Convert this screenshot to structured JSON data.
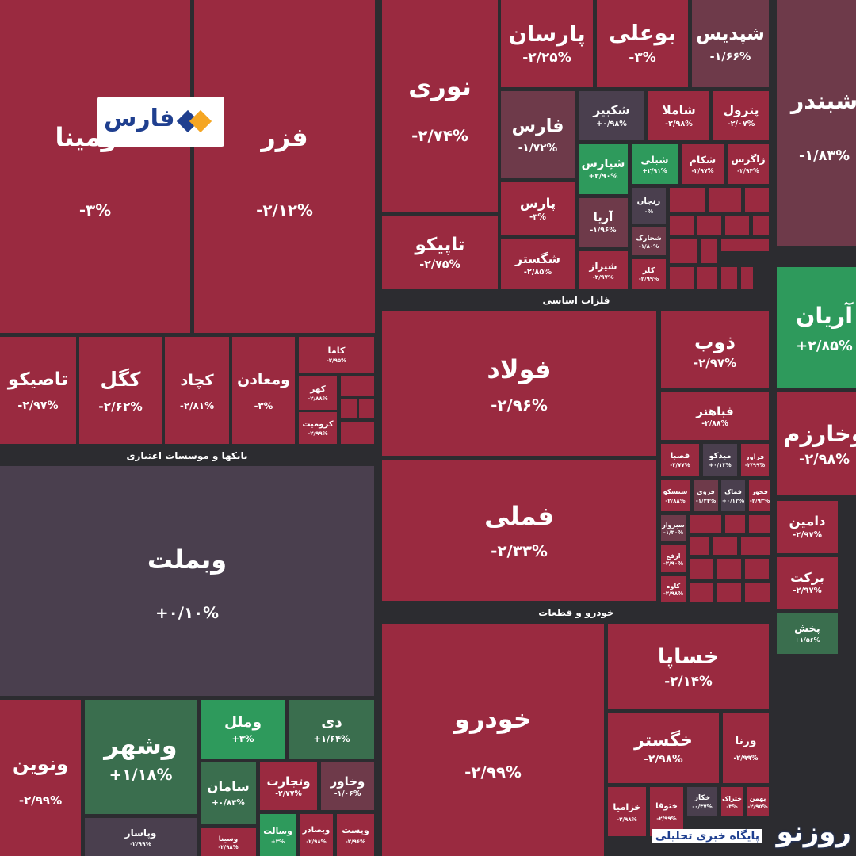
{
  "tiles": [
    {
      "name": "آلومینا",
      "change": "-۳%"
    },
    {
      "name": "فزر",
      "change": "-۲/۱۲%"
    },
    {
      "name": "تاصیکو",
      "change": "-۲/۹۷%"
    },
    {
      "name": "کگل",
      "change": "-۲/۶۲%"
    },
    {
      "name": "کچاد",
      "change": "-۲/۸۱%"
    },
    {
      "name": "ومعادن",
      "change": "-۳%"
    },
    {
      "name": "کاما",
      "change": "-۲/۹۵%"
    },
    {
      "name": "کهر",
      "change": "-۲/۸۸%"
    },
    {
      "name": "کرومیت",
      "change": "-۲/۹۹%"
    },
    {
      "name": "وبملت",
      "change": "+۰/۱۰%"
    },
    {
      "name": "ونوین",
      "change": "-۲/۹۹%"
    },
    {
      "name": "وشهر",
      "change": "+۱/۱۸%"
    },
    {
      "name": "وملل",
      "change": "+۳%"
    },
    {
      "name": "دی",
      "change": "+۱/۶۴%"
    },
    {
      "name": "سامان",
      "change": "+۰/۸۳%"
    },
    {
      "name": "وتجارت",
      "change": "-۲/۷۷%"
    },
    {
      "name": "وخاور",
      "change": "-۱/۰۶%"
    },
    {
      "name": "وپاسار",
      "change": "-۲/۹۹%"
    },
    {
      "name": "وسالت",
      "change": "+۳%"
    },
    {
      "name": "وبصادر",
      "change": "-۲/۹۸%"
    },
    {
      "name": "وپست",
      "change": "-۲/۹۶%"
    },
    {
      "name": "وسینا",
      "change": "-۲/۹۸%"
    },
    {
      "name": "نوری",
      "change": "-۲/۷۴%"
    },
    {
      "name": "تاپیکو",
      "change": "-۲/۷۵%"
    },
    {
      "name": "پارسان",
      "change": "-۲/۲۵%"
    },
    {
      "name": "فارس",
      "change": "-۱/۷۲%"
    },
    {
      "name": "پارس",
      "change": "-۳%"
    },
    {
      "name": "شگستر",
      "change": "-۲/۸۵%"
    },
    {
      "name": "بوعلی",
      "change": "-۳%"
    },
    {
      "name": "شپدیس",
      "change": "-۱/۶۶%"
    },
    {
      "name": "شکبیر",
      "change": "+۰/۹۸%"
    },
    {
      "name": "شاملا",
      "change": "-۲/۹۸%"
    },
    {
      "name": "پترول",
      "change": "-۲/۰۷%"
    },
    {
      "name": "شپارس",
      "change": "+۲/۹۰%"
    },
    {
      "name": "شبلی",
      "change": "+۲/۹۱%"
    },
    {
      "name": "شکام",
      "change": "-۲/۹۷%"
    },
    {
      "name": "زاگرس",
      "change": "-۲/۹۴%"
    },
    {
      "name": "آریا",
      "change": "-۱/۹۶%"
    },
    {
      "name": "شیراز",
      "change": "-۲/۹۷%"
    },
    {
      "name": "زنجان",
      "change": "۰%"
    },
    {
      "name": "شخارک",
      "change": "-۱/۸۰%"
    },
    {
      "name": "کلر",
      "change": "-۲/۹۹%"
    },
    {
      "name": "فولاد",
      "change": "-۲/۹۶%"
    },
    {
      "name": "فملی",
      "change": "-۲/۳۳%"
    },
    {
      "name": "ذوب",
      "change": "-۲/۹۷%"
    },
    {
      "name": "فباهنر",
      "change": "-۲/۸۸%"
    },
    {
      "name": "فصبا",
      "change": "-۲/۷۷%"
    },
    {
      "name": "میدکو",
      "change": "+۰/۱۳%"
    },
    {
      "name": "فرآور",
      "change": "-۲/۹۹%"
    },
    {
      "name": "سیسکو",
      "change": "-۲/۸۸%"
    },
    {
      "name": "فروی",
      "change": "-۱/۲۴%"
    },
    {
      "name": "فماک",
      "change": "+۰/۱۲%"
    },
    {
      "name": "فخوز",
      "change": "-۲/۹۳%"
    },
    {
      "name": "سبزوار",
      "change": "-۱/۳۰%"
    },
    {
      "name": "ارفع",
      "change": "-۲/۹۰%"
    },
    {
      "name": "کاوه",
      "change": "-۲/۹۸%"
    },
    {
      "name": "خودرو",
      "change": "-۲/۹۹%"
    },
    {
      "name": "خساپا",
      "change": "-۲/۱۴%"
    },
    {
      "name": "خگستر",
      "change": "-۲/۹۸%"
    },
    {
      "name": "ورنا",
      "change": "-۲/۹۹%"
    },
    {
      "name": "خزامیا",
      "change": "-۲/۹۸%"
    },
    {
      "name": "ختوقا",
      "change": "-۲/۹۹%"
    },
    {
      "name": "خکار",
      "change": "-۰/۳۷%"
    },
    {
      "name": "ختراک",
      "change": "-۳%"
    },
    {
      "name": "بهمن",
      "change": "-۲/۹۵%"
    },
    {
      "name": "شبندر",
      "change": "-۱/۸۳%"
    },
    {
      "name": "آریان",
      "change": "+۲/۸۵%"
    },
    {
      "name": "وخارزم",
      "change": "-۲/۹۸%"
    },
    {
      "name": "دامین",
      "change": "-۲/۹۷%"
    },
    {
      "name": "برکت",
      "change": "-۲/۹۷%"
    },
    {
      "name": "پخش",
      "change": "+۱/۵۶%"
    }
  ],
  "sectors": [
    "بانکها و موسسات اعتباری",
    "فلزات اساسی",
    "خودرو و قطعات"
  ],
  "logos": {
    "fars": "فارس",
    "roozno": "روزنو",
    "roozno_tagline": "پایگاه خبری تحلیلی"
  }
}
